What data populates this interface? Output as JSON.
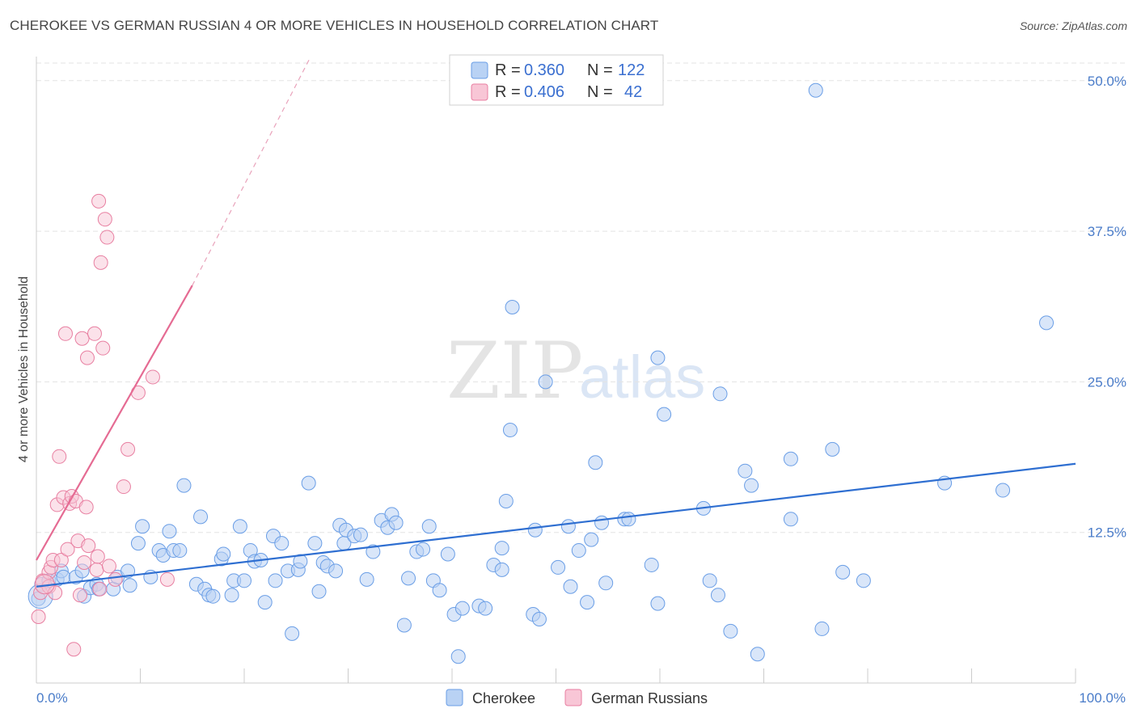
{
  "title": "CHEROKEE VS GERMAN RUSSIAN 4 OR MORE VEHICLES IN HOUSEHOLD CORRELATION CHART",
  "source": "Source: ZipAtlas.com",
  "watermark": {
    "zip": "ZIP",
    "atlas": "atlas"
  },
  "legend": {
    "r_label": "R =",
    "n_label": "N =",
    "entries": [
      {
        "name": "Cherokee",
        "r": "0.360",
        "n": "122",
        "color": "#6a9ee6",
        "fill": "#b9d2f4"
      },
      {
        "name": "German Russians",
        "r": "0.406",
        "n": "42",
        "color": "#e87fa1",
        "fill": "#f8c6d6"
      }
    ]
  },
  "chart_data": {
    "type": "scatter",
    "title": "CHEROKEE VS GERMAN RUSSIAN 4 OR MORE VEHICLES IN HOUSEHOLD CORRELATION CHART",
    "xlabel": "",
    "ylabel": "4 or more Vehicles in Household",
    "xlim": [
      0,
      100
    ],
    "ylim": [
      0,
      52
    ],
    "x_tick_labels": [
      "0.0%",
      "100.0%"
    ],
    "y_ticks": [
      12.5,
      25.0,
      37.5,
      50.0
    ],
    "y_tick_labels": [
      "12.5%",
      "25.0%",
      "37.5%",
      "50.0%"
    ],
    "grid": true,
    "legend_position": "top-center",
    "series": [
      {
        "name": "Cherokee",
        "color": "#6a9ee6",
        "trend": {
          "x": [
            0,
            100
          ],
          "y": [
            8.0,
            18.2
          ]
        },
        "points": [
          [
            0.2,
            7.0
          ],
          [
            0.5,
            8.2
          ],
          [
            1.2,
            8.5
          ],
          [
            2.0,
            8.6
          ],
          [
            2.4,
            9.3
          ],
          [
            2.6,
            8.8
          ],
          [
            3.8,
            8.8
          ],
          [
            4.4,
            9.3
          ],
          [
            4.6,
            7.2
          ],
          [
            5.2,
            7.9
          ],
          [
            5.8,
            8.2
          ],
          [
            6.0,
            7.8
          ],
          [
            7.4,
            7.8
          ],
          [
            7.8,
            8.8
          ],
          [
            8.8,
            9.3
          ],
          [
            9.0,
            8.1
          ],
          [
            9.8,
            11.6
          ],
          [
            10.2,
            13.0
          ],
          [
            11.0,
            8.8
          ],
          [
            11.8,
            11.0
          ],
          [
            12.2,
            10.6
          ],
          [
            12.8,
            12.6
          ],
          [
            13.2,
            11.0
          ],
          [
            13.8,
            11.0
          ],
          [
            14.2,
            16.4
          ],
          [
            15.4,
            8.2
          ],
          [
            15.8,
            13.8
          ],
          [
            16.2,
            7.8
          ],
          [
            16.6,
            7.3
          ],
          [
            17.0,
            7.2
          ],
          [
            17.8,
            10.3
          ],
          [
            18.0,
            10.7
          ],
          [
            18.8,
            7.3
          ],
          [
            19.0,
            8.5
          ],
          [
            19.6,
            13.0
          ],
          [
            20.0,
            8.5
          ],
          [
            20.6,
            11.0
          ],
          [
            21.0,
            10.1
          ],
          [
            21.6,
            10.2
          ],
          [
            22.0,
            6.7
          ],
          [
            22.8,
            12.2
          ],
          [
            23.0,
            8.5
          ],
          [
            23.6,
            11.6
          ],
          [
            24.2,
            9.3
          ],
          [
            24.6,
            4.1
          ],
          [
            25.2,
            9.4
          ],
          [
            25.4,
            10.1
          ],
          [
            26.2,
            16.6
          ],
          [
            26.8,
            11.6
          ],
          [
            27.2,
            7.6
          ],
          [
            27.6,
            10.0
          ],
          [
            28.0,
            9.7
          ],
          [
            28.8,
            9.3
          ],
          [
            29.2,
            13.1
          ],
          [
            29.6,
            11.6
          ],
          [
            29.8,
            12.7
          ],
          [
            30.6,
            12.2
          ],
          [
            31.2,
            12.3
          ],
          [
            31.8,
            8.6
          ],
          [
            32.4,
            10.9
          ],
          [
            33.2,
            13.5
          ],
          [
            33.8,
            12.9
          ],
          [
            34.2,
            14.0
          ],
          [
            34.6,
            13.3
          ],
          [
            35.4,
            4.8
          ],
          [
            35.8,
            8.7
          ],
          [
            36.6,
            10.9
          ],
          [
            37.2,
            11.1
          ],
          [
            37.8,
            13.0
          ],
          [
            38.2,
            8.5
          ],
          [
            38.8,
            7.7
          ],
          [
            39.6,
            10.7
          ],
          [
            40.2,
            5.7
          ],
          [
            40.6,
            2.2
          ],
          [
            41.0,
            6.2
          ],
          [
            42.6,
            6.4
          ],
          [
            43.2,
            6.2
          ],
          [
            44.0,
            9.8
          ],
          [
            44.8,
            9.4
          ],
          [
            44.8,
            11.2
          ],
          [
            45.2,
            15.1
          ],
          [
            45.6,
            21.0
          ],
          [
            45.8,
            31.2
          ],
          [
            47.8,
            5.7
          ],
          [
            48.0,
            12.7
          ],
          [
            48.4,
            5.3
          ],
          [
            49.0,
            25.0
          ],
          [
            50.2,
            9.6
          ],
          [
            51.2,
            13.0
          ],
          [
            51.4,
            8.0
          ],
          [
            52.2,
            11.0
          ],
          [
            53.0,
            6.7
          ],
          [
            53.4,
            11.9
          ],
          [
            53.8,
            18.3
          ],
          [
            54.4,
            13.3
          ],
          [
            54.8,
            8.3
          ],
          [
            56.6,
            13.6
          ],
          [
            57.0,
            13.6
          ],
          [
            59.2,
            9.8
          ],
          [
            59.8,
            27.0
          ],
          [
            59.8,
            6.6
          ],
          [
            60.4,
            22.3
          ],
          [
            64.2,
            14.5
          ],
          [
            64.8,
            8.5
          ],
          [
            65.6,
            7.3
          ],
          [
            65.8,
            24.0
          ],
          [
            66.8,
            4.3
          ],
          [
            68.2,
            17.6
          ],
          [
            68.8,
            16.4
          ],
          [
            69.4,
            2.4
          ],
          [
            72.6,
            13.6
          ],
          [
            72.6,
            18.6
          ],
          [
            75.0,
            49.2
          ],
          [
            75.6,
            4.5
          ],
          [
            76.6,
            19.4
          ],
          [
            77.6,
            9.2
          ],
          [
            79.6,
            8.5
          ],
          [
            87.4,
            16.6
          ],
          [
            93.0,
            16.0
          ],
          [
            97.2,
            29.9
          ]
        ]
      },
      {
        "name": "German Russians",
        "color": "#e87fa1",
        "trend_solid": {
          "x": [
            0,
            15.0
          ],
          "y": [
            10.2,
            33.0
          ]
        },
        "trend_dashed": {
          "x": [
            15.0,
            26.4
          ],
          "y": [
            33.0,
            52.0
          ]
        },
        "points": [
          [
            0.2,
            5.5
          ],
          [
            0.4,
            7.5
          ],
          [
            0.6,
            8.5
          ],
          [
            1.2,
            9.2
          ],
          [
            1.2,
            8.0
          ],
          [
            1.4,
            9.6
          ],
          [
            1.6,
            10.2
          ],
          [
            1.8,
            7.5
          ],
          [
            2.0,
            14.8
          ],
          [
            2.2,
            18.8
          ],
          [
            2.4,
            10.2
          ],
          [
            2.6,
            15.4
          ],
          [
            2.8,
            29.0
          ],
          [
            3.0,
            11.1
          ],
          [
            3.2,
            14.9
          ],
          [
            3.4,
            15.5
          ],
          [
            3.6,
            2.8
          ],
          [
            3.8,
            15.1
          ],
          [
            4.0,
            11.8
          ],
          [
            4.2,
            7.3
          ],
          [
            4.4,
            28.6
          ],
          [
            4.6,
            10.0
          ],
          [
            4.8,
            14.6
          ],
          [
            4.9,
            27.0
          ],
          [
            5.0,
            11.4
          ],
          [
            5.6,
            29.0
          ],
          [
            5.8,
            9.4
          ],
          [
            5.9,
            10.5
          ],
          [
            6.0,
            40.0
          ],
          [
            6.1,
            7.8
          ],
          [
            6.2,
            34.9
          ],
          [
            6.4,
            27.8
          ],
          [
            6.6,
            38.5
          ],
          [
            6.8,
            37.0
          ],
          [
            7.0,
            9.7
          ],
          [
            7.6,
            8.6
          ],
          [
            8.4,
            16.3
          ],
          [
            8.8,
            19.4
          ],
          [
            9.8,
            24.1
          ],
          [
            11.2,
            25.4
          ],
          [
            12.6,
            8.6
          ]
        ]
      }
    ]
  }
}
